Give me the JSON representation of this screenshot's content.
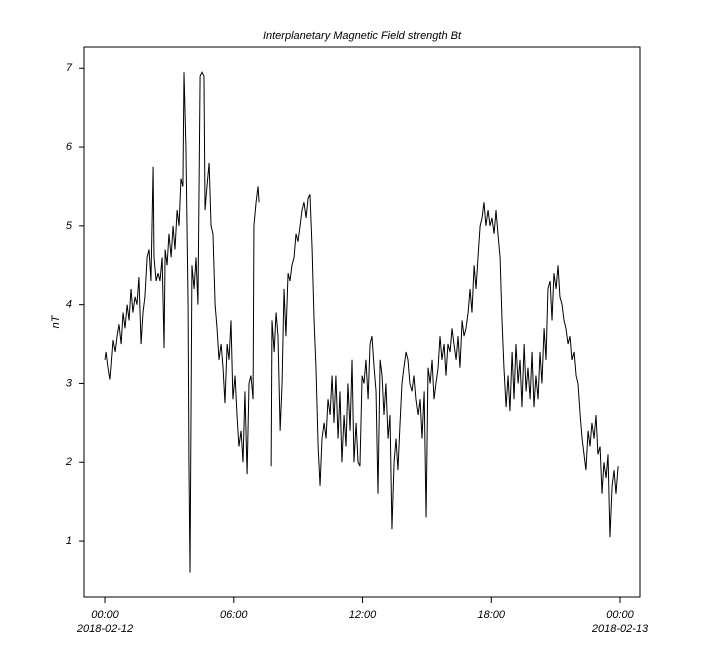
{
  "chart_data": {
    "type": "line",
    "title": "Interplanetary Magnetic Field strength Bt",
    "ylabel": "nT",
    "color": "#000000",
    "x": [
      0,
      0.05,
      0.14,
      0.23,
      0.33,
      0.37,
      0.47,
      0.56,
      0.65,
      0.75,
      0.84,
      0.93,
      1.03,
      1.12,
      1.21,
      1.3,
      1.4,
      1.49,
      1.58,
      1.68,
      1.77,
      1.86,
      1.96,
      2.05,
      2.14,
      2.24,
      2.28,
      2.38,
      2.47,
      2.56,
      2.66,
      2.75,
      2.8,
      2.89,
      2.98,
      3.08,
      3.17,
      3.26,
      3.36,
      3.45,
      3.54,
      3.63,
      3.68,
      3.77,
      3.87,
      3.91,
      3.96,
      4.05,
      4.15,
      4.24,
      4.33,
      4.43,
      4.52,
      4.61,
      4.66,
      4.75,
      4.85,
      4.94,
      5.03,
      5.13,
      5.22,
      5.31,
      5.41,
      5.5,
      5.59,
      5.69,
      5.78,
      5.87,
      5.96,
      6.06,
      6.15,
      6.24,
      6.34,
      6.43,
      6.52,
      6.62,
      6.71,
      6.8,
      6.9,
      6.94,
      7.04,
      7.13,
      7.18,
      7.5,
      7.74,
      7.78,
      7.88,
      7.97,
      8.06,
      8.16,
      8.25,
      8.34,
      8.43,
      8.53,
      8.62,
      8.71,
      8.81,
      8.9,
      8.99,
      9.09,
      9.18,
      9.27,
      9.37,
      9.46,
      9.55,
      9.65,
      9.74,
      9.83,
      9.93,
      10.02,
      10.11,
      10.21,
      10.3,
      10.39,
      10.49,
      10.58,
      10.67,
      10.76,
      10.86,
      10.95,
      11.04,
      11.14,
      11.23,
      11.32,
      11.42,
      11.51,
      11.6,
      11.7,
      11.79,
      11.88,
      11.98,
      12.07,
      12.16,
      12.26,
      12.35,
      12.44,
      12.54,
      12.63,
      12.72,
      12.82,
      12.91,
      13.0,
      13.09,
      13.19,
      13.28,
      13.37,
      13.47,
      13.56,
      13.65,
      13.75,
      13.84,
      13.93,
      14.03,
      14.12,
      14.21,
      14.31,
      14.4,
      14.49,
      14.59,
      14.68,
      14.77,
      14.87,
      14.96,
      15.05,
      15.15,
      15.24,
      15.33,
      15.42,
      15.52,
      15.61,
      15.7,
      15.8,
      15.89,
      15.98,
      16.08,
      16.17,
      16.26,
      16.36,
      16.45,
      16.54,
      16.64,
      16.73,
      16.82,
      16.92,
      17.01,
      17.1,
      17.2,
      17.29,
      17.38,
      17.48,
      17.57,
      17.66,
      17.75,
      17.85,
      17.94,
      18.03,
      18.13,
      18.22,
      18.31,
      18.41,
      18.5,
      18.59,
      18.69,
      18.78,
      18.87,
      18.97,
      19.06,
      19.15,
      19.25,
      19.34,
      19.43,
      19.53,
      19.62,
      19.71,
      19.81,
      19.9,
      19.99,
      20.08,
      20.18,
      20.27,
      20.36,
      20.46,
      20.55,
      20.64,
      20.74,
      20.83,
      20.92,
      21.02,
      21.11,
      21.2,
      21.3,
      21.39,
      21.48,
      21.58,
      21.67,
      21.76,
      21.86,
      21.95,
      22.04,
      22.14,
      22.23,
      22.32,
      22.41,
      22.51,
      22.6,
      22.69,
      22.79,
      22.88,
      22.97,
      23.07,
      23.16,
      23.25,
      23.35,
      23.44,
      23.53,
      23.63,
      23.72,
      23.81,
      23.91
    ],
    "values": [
      3.3,
      3.4,
      3.2,
      3.05,
      3.4,
      3.55,
      3.4,
      3.6,
      3.75,
      3.5,
      3.9,
      3.7,
      4.0,
      3.8,
      4.2,
      3.9,
      4.1,
      4.0,
      4.35,
      3.5,
      3.9,
      4.1,
      4.6,
      4.7,
      4.3,
      5.75,
      4.6,
      4.3,
      4.4,
      4.3,
      4.6,
      3.45,
      4.7,
      4.5,
      4.9,
      4.6,
      5.0,
      4.7,
      5.2,
      5.0,
      5.6,
      5.5,
      6.95,
      6.0,
      4.0,
      2.0,
      0.6,
      4.5,
      4.2,
      4.6,
      4.0,
      6.9,
      6.95,
      6.9,
      5.2,
      5.5,
      5.8,
      5.0,
      4.9,
      4.0,
      3.7,
      3.3,
      3.5,
      3.2,
      2.75,
      3.5,
      3.3,
      3.8,
      2.8,
      3.1,
      2.6,
      2.2,
      2.4,
      2.0,
      2.9,
      1.85,
      3.0,
      3.1,
      2.8,
      5.0,
      5.3,
      5.5,
      5.3,
      null,
      1.95,
      3.8,
      3.4,
      3.9,
      3.6,
      2.4,
      3.0,
      4.2,
      3.6,
      4.4,
      4.3,
      4.5,
      4.6,
      4.9,
      4.8,
      5.0,
      5.2,
      5.3,
      5.1,
      5.35,
      5.4,
      4.7,
      3.8,
      3.2,
      2.2,
      1.7,
      2.3,
      2.5,
      2.3,
      2.8,
      2.6,
      3.1,
      2.5,
      3.1,
      2.3,
      2.9,
      2.0,
      2.6,
      2.2,
      3.0,
      2.4,
      3.3,
      2.0,
      2.5,
      2.0,
      1.95,
      3.1,
      3.0,
      3.3,
      2.8,
      3.5,
      3.6,
      3.2,
      2.9,
      1.6,
      3.3,
      3.1,
      2.6,
      3.0,
      2.3,
      2.6,
      1.15,
      2.0,
      2.3,
      1.9,
      2.5,
      3.0,
      3.2,
      3.4,
      3.3,
      3.0,
      2.9,
      3.1,
      2.8,
      2.6,
      2.8,
      2.3,
      2.9,
      1.3,
      3.2,
      3.0,
      3.3,
      2.8,
      3.0,
      3.2,
      3.6,
      3.3,
      3.5,
      3.1,
      3.5,
      3.4,
      3.7,
      3.5,
      3.3,
      3.6,
      3.2,
      3.8,
      3.6,
      3.7,
      3.9,
      4.2,
      3.9,
      4.5,
      4.2,
      4.6,
      5.0,
      5.1,
      5.3,
      5.0,
      5.2,
      5.0,
      5.1,
      4.9,
      5.2,
      4.9,
      4.6,
      3.8,
      3.2,
      2.7,
      3.1,
      2.65,
      3.4,
      2.8,
      3.5,
      3.0,
      3.3,
      2.7,
      3.5,
      2.9,
      3.2,
      2.8,
      3.4,
      2.7,
      3.1,
      2.8,
      3.4,
      3.0,
      3.7,
      3.3,
      4.2,
      4.3,
      3.8,
      4.4,
      4.2,
      4.5,
      4.1,
      4.0,
      3.8,
      3.7,
      3.5,
      3.6,
      3.3,
      3.4,
      3.1,
      3.0,
      2.6,
      2.3,
      2.1,
      1.9,
      2.4,
      2.2,
      2.5,
      2.3,
      2.6,
      2.1,
      2.2,
      1.6,
      2.0,
      1.8,
      2.1,
      1.05,
      1.7,
      1.9,
      1.6,
      1.95
    ],
    "xlim": [
      -0.98,
      24.93
    ],
    "xticks": [
      {
        "value": 0,
        "label": "00:00"
      },
      {
        "value": 6,
        "label": "06:00"
      },
      {
        "value": 12,
        "label": "12:00"
      },
      {
        "value": 18,
        "label": "18:00"
      },
      {
        "value": 24,
        "label": "00:00"
      }
    ],
    "xtick_dates": [
      {
        "value": 0,
        "label": "2018-02-12"
      },
      {
        "value": 24,
        "label": "2018-02-13"
      }
    ],
    "ylim": [
      0.29,
      7.27
    ],
    "yticks": [
      1,
      2,
      3,
      4,
      5,
      6,
      7
    ]
  }
}
